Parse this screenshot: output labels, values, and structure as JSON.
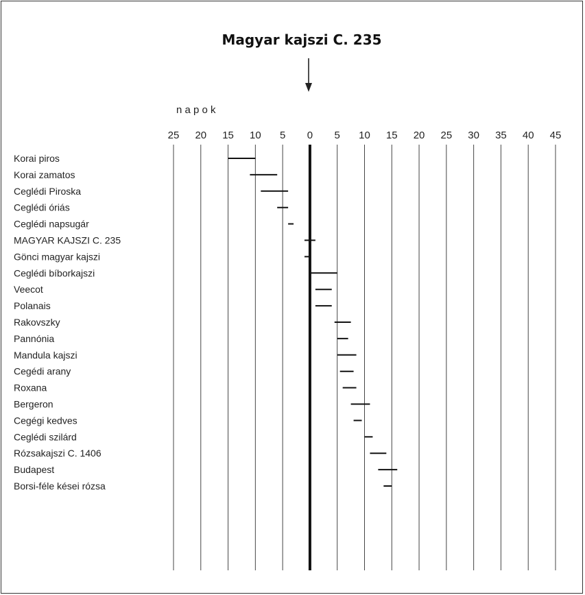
{
  "chart_data": {
    "type": "range",
    "title": "Magyar kajszi C. 235",
    "xlabel": "n a p o k",
    "xlim": [
      -25,
      45
    ],
    "x_ticks": [
      -25,
      -20,
      -15,
      -10,
      -5,
      0,
      5,
      10,
      15,
      20,
      25,
      30,
      35,
      40,
      45
    ],
    "x_tick_labels": [
      "25",
      "20",
      "15",
      "10",
      "5",
      "0",
      "5",
      "10",
      "15",
      "20",
      "25",
      "30",
      "35",
      "40",
      "45"
    ],
    "reference_line": 0,
    "grid": "vertical",
    "categories": [
      "Korai piros",
      "Korai zamatos",
      "Ceglédi Piroska",
      "Ceglédi óriás",
      "Ceglédi napsugár",
      "MAGYAR KAJSZI C. 235",
      "Gönci magyar kajszi",
      "Ceglédi bíborkajszi",
      "Veecot",
      "Polanais",
      "Rakovszky",
      "Pannónia",
      "Mandula kajszi",
      "Cegédi arany",
      "Roxana",
      "Bergeron",
      "Cegégi kedves",
      "Ceglédi szilárd",
      "Rózsakajszi C. 1406",
      "Budapest",
      "Borsi-féle kései rózsa"
    ],
    "ranges": [
      [
        -15,
        -10
      ],
      [
        -11,
        -6
      ],
      [
        -9,
        -4
      ],
      [
        -6,
        -4
      ],
      [
        -4,
        -3
      ],
      [
        -1,
        1
      ],
      [
        -1,
        0
      ],
      [
        0,
        5
      ],
      [
        1,
        4
      ],
      [
        1,
        4
      ],
      [
        4.5,
        7.5
      ],
      [
        5,
        7
      ],
      [
        5,
        8.5
      ],
      [
        5.5,
        8
      ],
      [
        6,
        8.5
      ],
      [
        7.5,
        11
      ],
      [
        8,
        9.5
      ],
      [
        10,
        11.5
      ],
      [
        11,
        14
      ],
      [
        12.5,
        16
      ],
      [
        13.5,
        15
      ]
    ]
  }
}
